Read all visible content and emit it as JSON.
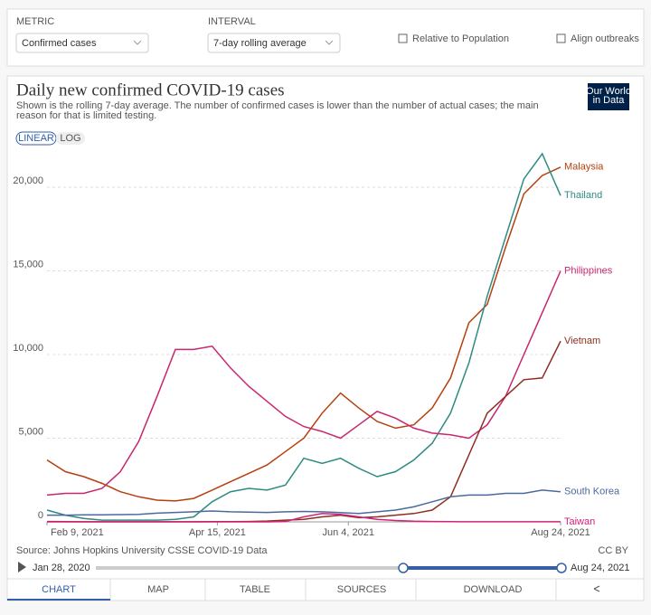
{
  "controls": {
    "metric_label": "METRIC",
    "metric": "Confirmed cases",
    "interval_label": "INTERVAL",
    "interval": "7-day rolling average",
    "relative": "Relative to Population",
    "align": "Align outbreaks"
  },
  "scale_toggle": [
    "LINEAR",
    "LOG"
  ],
  "logo": [
    "Our World",
    "in Data"
  ],
  "footer": {
    "source": "Source: Johns Hopkins University CSSE COVID-19 Data",
    "license": "CC BY",
    "start": "Jan 28, 2020",
    "end": "Aug 24, 2021"
  },
  "tabs": [
    "CHART",
    "MAP",
    "TABLE",
    "SOURCES",
    "DOWNLOAD"
  ],
  "chart_data": {
    "type": "line",
    "title": "Daily new confirmed COVID-19 cases",
    "subtitle": "Shown is the rolling 7-day average. The number of confirmed cases is lower than the number of actual cases; the main reason for that is limited testing.",
    "x": [
      "2021-02-09",
      "2021-02-16",
      "2021-02-23",
      "2021-03-02",
      "2021-03-09",
      "2021-03-16",
      "2021-03-23",
      "2021-03-30",
      "2021-04-06",
      "2021-04-13",
      "2021-04-20",
      "2021-04-27",
      "2021-05-04",
      "2021-05-11",
      "2021-05-18",
      "2021-05-25",
      "2021-06-01",
      "2021-06-08",
      "2021-06-15",
      "2021-06-22",
      "2021-06-29",
      "2021-07-06",
      "2021-07-13",
      "2021-07-20",
      "2021-07-27",
      "2021-08-03",
      "2021-08-10",
      "2021-08-17",
      "2021-08-24"
    ],
    "xlim": [
      "2021-02-09",
      "2021-08-24"
    ],
    "xticks": [
      {
        "value": "2021-02-09",
        "label": "Feb 9, 2021"
      },
      {
        "value": "2021-04-15",
        "label": "Apr 15, 2021"
      },
      {
        "value": "2021-06-04",
        "label": "Jun 4, 2021"
      },
      {
        "value": "2021-08-24",
        "label": "Aug 24, 2021"
      }
    ],
    "ylim": [
      0,
      22000
    ],
    "yticks": [
      0,
      {
        "value": 5000,
        "label": "5,000"
      },
      {
        "value": 10000,
        "label": "10,000"
      },
      {
        "value": 15000,
        "label": "15,000"
      },
      {
        "value": 20000,
        "label": "20,000"
      }
    ],
    "grid": true,
    "series": [
      {
        "name": "Malaysia",
        "color": "#b5400f",
        "values": [
          3700,
          3000,
          2700,
          2300,
          1800,
          1500,
          1300,
          1250,
          1400,
          1900,
          2400,
          2900,
          3400,
          4200,
          5000,
          6500,
          7700,
          6800,
          6000,
          5600,
          5800,
          6800,
          8600,
          11900,
          13000,
          16400,
          19600,
          20700,
          21200
        ]
      },
      {
        "name": "Thailand",
        "color": "#2e8b84",
        "values": [
          700,
          400,
          200,
          100,
          100,
          100,
          100,
          150,
          300,
          1200,
          1800,
          2000,
          1900,
          2200,
          3800,
          3500,
          3800,
          3200,
          2700,
          3000,
          3700,
          4700,
          6500,
          9500,
          13500,
          17000,
          20500,
          22000,
          19500
        ]
      },
      {
        "name": "Philippines",
        "color": "#c8266f",
        "values": [
          1600,
          1700,
          1700,
          2000,
          3000,
          4800,
          7500,
          10300,
          10300,
          10500,
          9200,
          8100,
          7200,
          6300,
          5700,
          5400,
          5000,
          5800,
          6600,
          6200,
          5600,
          5300,
          5200,
          5000,
          5800,
          7500,
          10000,
          12500,
          15000
        ]
      },
      {
        "name": "Vietnam",
        "color": "#8c2f1f",
        "values": [
          20,
          10,
          5,
          5,
          5,
          5,
          5,
          5,
          5,
          10,
          10,
          20,
          50,
          100,
          150,
          300,
          400,
          250,
          300,
          400,
          500,
          700,
          1500,
          4000,
          6500,
          7500,
          8500,
          8600,
          10800
        ]
      },
      {
        "name": "South Korea",
        "color": "#4c6a9c",
        "values": [
          400,
          400,
          420,
          420,
          430,
          450,
          520,
          560,
          600,
          650,
          600,
          580,
          560,
          600,
          620,
          600,
          550,
          500,
          600,
          700,
          900,
          1200,
          1500,
          1600,
          1600,
          1700,
          1700,
          1900,
          1800
        ]
      },
      {
        "name": "Taiwan",
        "color": "#d4217a",
        "values": [
          0,
          0,
          0,
          0,
          0,
          0,
          0,
          0,
          0,
          0,
          0,
          0,
          0,
          20,
          300,
          500,
          450,
          300,
          150,
          80,
          40,
          20,
          10,
          5,
          5,
          5,
          5,
          5,
          5
        ]
      }
    ]
  }
}
